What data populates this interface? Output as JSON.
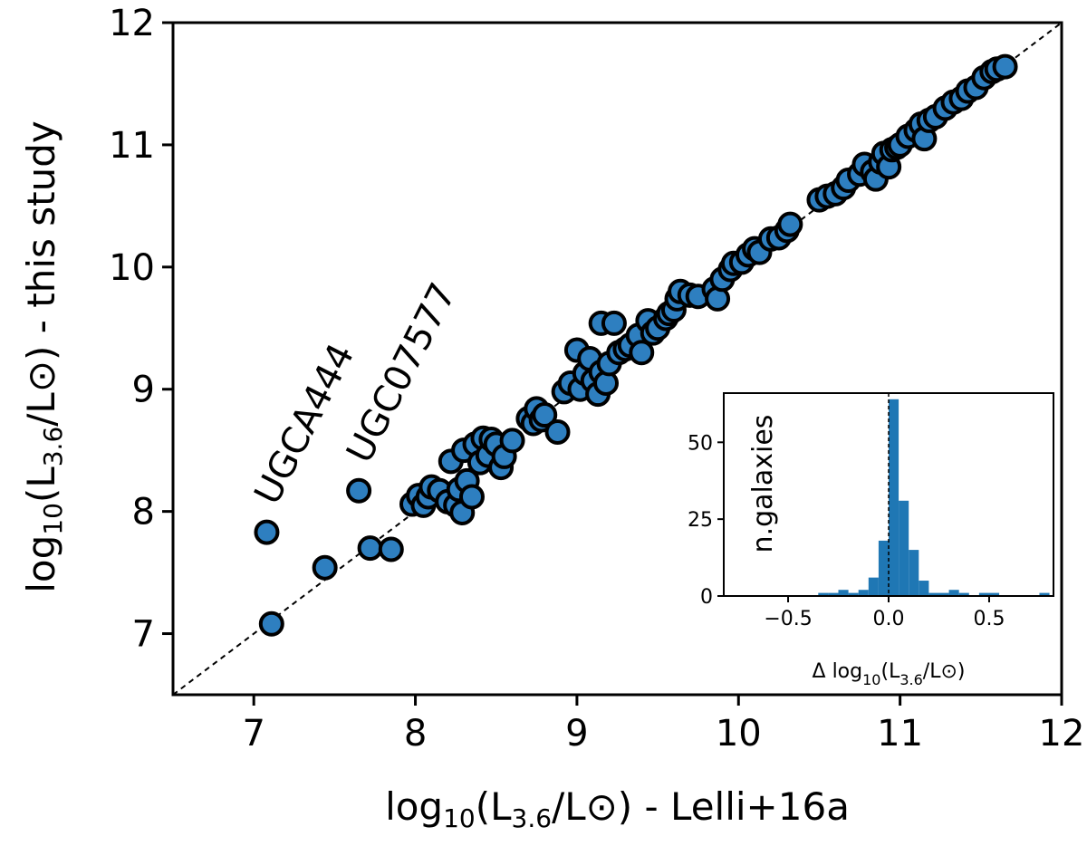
{
  "chart_data": [
    {
      "type": "scatter",
      "xlabel": {
        "pre": "log",
        "sub1": "10",
        "mid": "(L",
        "sub2": "3.6",
        "post": "/L⊙) - Lelli+16a"
      },
      "ylabel": {
        "pre": "log",
        "sub1": "10",
        "mid": "(L",
        "sub2": "3.6",
        "post": "/L⊙) - this study"
      },
      "xlim": [
        6.5,
        12
      ],
      "ylim": [
        6.5,
        12
      ],
      "xticks": [
        "7",
        "8",
        "9",
        "10",
        "11",
        "12"
      ],
      "yticks": [
        "7",
        "8",
        "9",
        "10",
        "11",
        "12"
      ],
      "one_to_one_line": true,
      "point_color": "#2e7fc0",
      "annotations": [
        {
          "text": "UGCA444",
          "x": 7.08,
          "y": 7.83
        },
        {
          "text": "UGC07577",
          "x": 7.65,
          "y": 8.17
        }
      ],
      "points": [
        [
          7.08,
          7.83
        ],
        [
          7.11,
          7.08
        ],
        [
          7.44,
          7.54
        ],
        [
          7.65,
          8.17
        ],
        [
          7.72,
          7.7
        ],
        [
          7.85,
          7.69
        ],
        [
          7.98,
          8.06
        ],
        [
          8.02,
          8.13
        ],
        [
          8.05,
          8.05
        ],
        [
          8.08,
          8.12
        ],
        [
          8.1,
          8.2
        ],
        [
          8.15,
          8.17
        ],
        [
          8.2,
          8.08
        ],
        [
          8.22,
          8.41
        ],
        [
          8.25,
          8.05
        ],
        [
          8.27,
          8.18
        ],
        [
          8.29,
          7.99
        ],
        [
          8.32,
          8.25
        ],
        [
          8.3,
          8.5
        ],
        [
          8.35,
          8.12
        ],
        [
          8.37,
          8.55
        ],
        [
          8.4,
          8.4
        ],
        [
          8.42,
          8.6
        ],
        [
          8.45,
          8.46
        ],
        [
          8.47,
          8.59
        ],
        [
          8.5,
          8.55
        ],
        [
          8.53,
          8.36
        ],
        [
          8.55,
          8.45
        ],
        [
          8.6,
          8.58
        ],
        [
          8.7,
          8.76
        ],
        [
          8.73,
          8.72
        ],
        [
          8.75,
          8.84
        ],
        [
          8.78,
          8.75
        ],
        [
          8.8,
          8.79
        ],
        [
          8.88,
          8.65
        ],
        [
          8.92,
          8.98
        ],
        [
          8.96,
          9.05
        ],
        [
          9.0,
          9.32
        ],
        [
          9.02,
          9.0
        ],
        [
          9.05,
          9.13
        ],
        [
          9.08,
          9.25
        ],
        [
          9.1,
          9.07
        ],
        [
          9.13,
          8.96
        ],
        [
          9.15,
          9.14
        ],
        [
          9.18,
          9.05
        ],
        [
          9.2,
          9.21
        ],
        [
          9.15,
          9.54
        ],
        [
          9.23,
          9.54
        ],
        [
          9.26,
          9.3
        ],
        [
          9.3,
          9.33
        ],
        [
          9.33,
          9.36
        ],
        [
          9.38,
          9.44
        ],
        [
          9.4,
          9.3
        ],
        [
          9.44,
          9.56
        ],
        [
          9.47,
          9.46
        ],
        [
          9.5,
          9.5
        ],
        [
          9.55,
          9.58
        ],
        [
          9.57,
          9.62
        ],
        [
          9.6,
          9.65
        ],
        [
          9.62,
          9.74
        ],
        [
          9.64,
          9.8
        ],
        [
          9.7,
          9.77
        ],
        [
          9.75,
          9.76
        ],
        [
          9.85,
          9.82
        ],
        [
          9.87,
          9.74
        ],
        [
          9.9,
          9.9
        ],
        [
          9.95,
          9.98
        ],
        [
          9.97,
          10.03
        ],
        [
          10.02,
          10.04
        ],
        [
          10.06,
          10.1
        ],
        [
          10.1,
          10.15
        ],
        [
          10.13,
          10.12
        ],
        [
          10.2,
          10.23
        ],
        [
          10.25,
          10.24
        ],
        [
          10.3,
          10.3
        ],
        [
          10.32,
          10.35
        ],
        [
          10.5,
          10.55
        ],
        [
          10.55,
          10.58
        ],
        [
          10.6,
          10.6
        ],
        [
          10.65,
          10.65
        ],
        [
          10.68,
          10.71
        ],
        [
          10.75,
          10.76
        ],
        [
          10.78,
          10.84
        ],
        [
          10.83,
          10.78
        ],
        [
          10.85,
          10.72
        ],
        [
          10.88,
          10.86
        ],
        [
          10.9,
          10.93
        ],
        [
          10.93,
          10.82
        ],
        [
          10.95,
          10.96
        ],
        [
          10.98,
          10.98
        ],
        [
          11.0,
          11.0
        ],
        [
          11.05,
          11.07
        ],
        [
          11.1,
          11.12
        ],
        [
          11.13,
          11.17
        ],
        [
          11.15,
          11.05
        ],
        [
          11.18,
          11.2
        ],
        [
          11.22,
          11.23
        ],
        [
          11.28,
          11.3
        ],
        [
          11.33,
          11.35
        ],
        [
          11.38,
          11.38
        ],
        [
          11.42,
          11.44
        ],
        [
          11.47,
          11.47
        ],
        [
          11.52,
          11.55
        ],
        [
          11.57,
          11.6
        ],
        [
          11.6,
          11.62
        ],
        [
          11.65,
          11.64
        ]
      ]
    },
    {
      "type": "bar",
      "xlabel": {
        "pre": "Δ log",
        "sub1": "10",
        "mid": "(L",
        "sub2": "3.6",
        "post": "/L⊙)"
      },
      "ylabel": "n.galaxies",
      "xlim": [
        -0.82,
        0.82
      ],
      "ylim": [
        0,
        66
      ],
      "xticks": [
        {
          "v": -0.5,
          "label": "−0.5"
        },
        {
          "v": 0.0,
          "label": "0.0"
        },
        {
          "v": 0.5,
          "label": "0.5"
        }
      ],
      "yticks": [
        {
          "v": 0,
          "label": "0"
        },
        {
          "v": 25,
          "label": "25"
        },
        {
          "v": 50,
          "label": "50"
        }
      ],
      "zero_line": true,
      "bar_color": "#1f77b4",
      "bin_width": 0.05,
      "bins": [
        {
          "x0": -0.35,
          "n": 1
        },
        {
          "x0": -0.3,
          "n": 1
        },
        {
          "x0": -0.25,
          "n": 2
        },
        {
          "x0": -0.2,
          "n": 1
        },
        {
          "x0": -0.15,
          "n": 2
        },
        {
          "x0": -0.1,
          "n": 6
        },
        {
          "x0": -0.05,
          "n": 18
        },
        {
          "x0": 0.0,
          "n": 64
        },
        {
          "x0": 0.05,
          "n": 31
        },
        {
          "x0": 0.1,
          "n": 15
        },
        {
          "x0": 0.15,
          "n": 5
        },
        {
          "x0": 0.2,
          "n": 1
        },
        {
          "x0": 0.25,
          "n": 1
        },
        {
          "x0": 0.3,
          "n": 2
        },
        {
          "x0": 0.35,
          "n": 1
        },
        {
          "x0": 0.45,
          "n": 1
        },
        {
          "x0": 0.5,
          "n": 1
        },
        {
          "x0": 0.75,
          "n": 1
        }
      ]
    }
  ]
}
